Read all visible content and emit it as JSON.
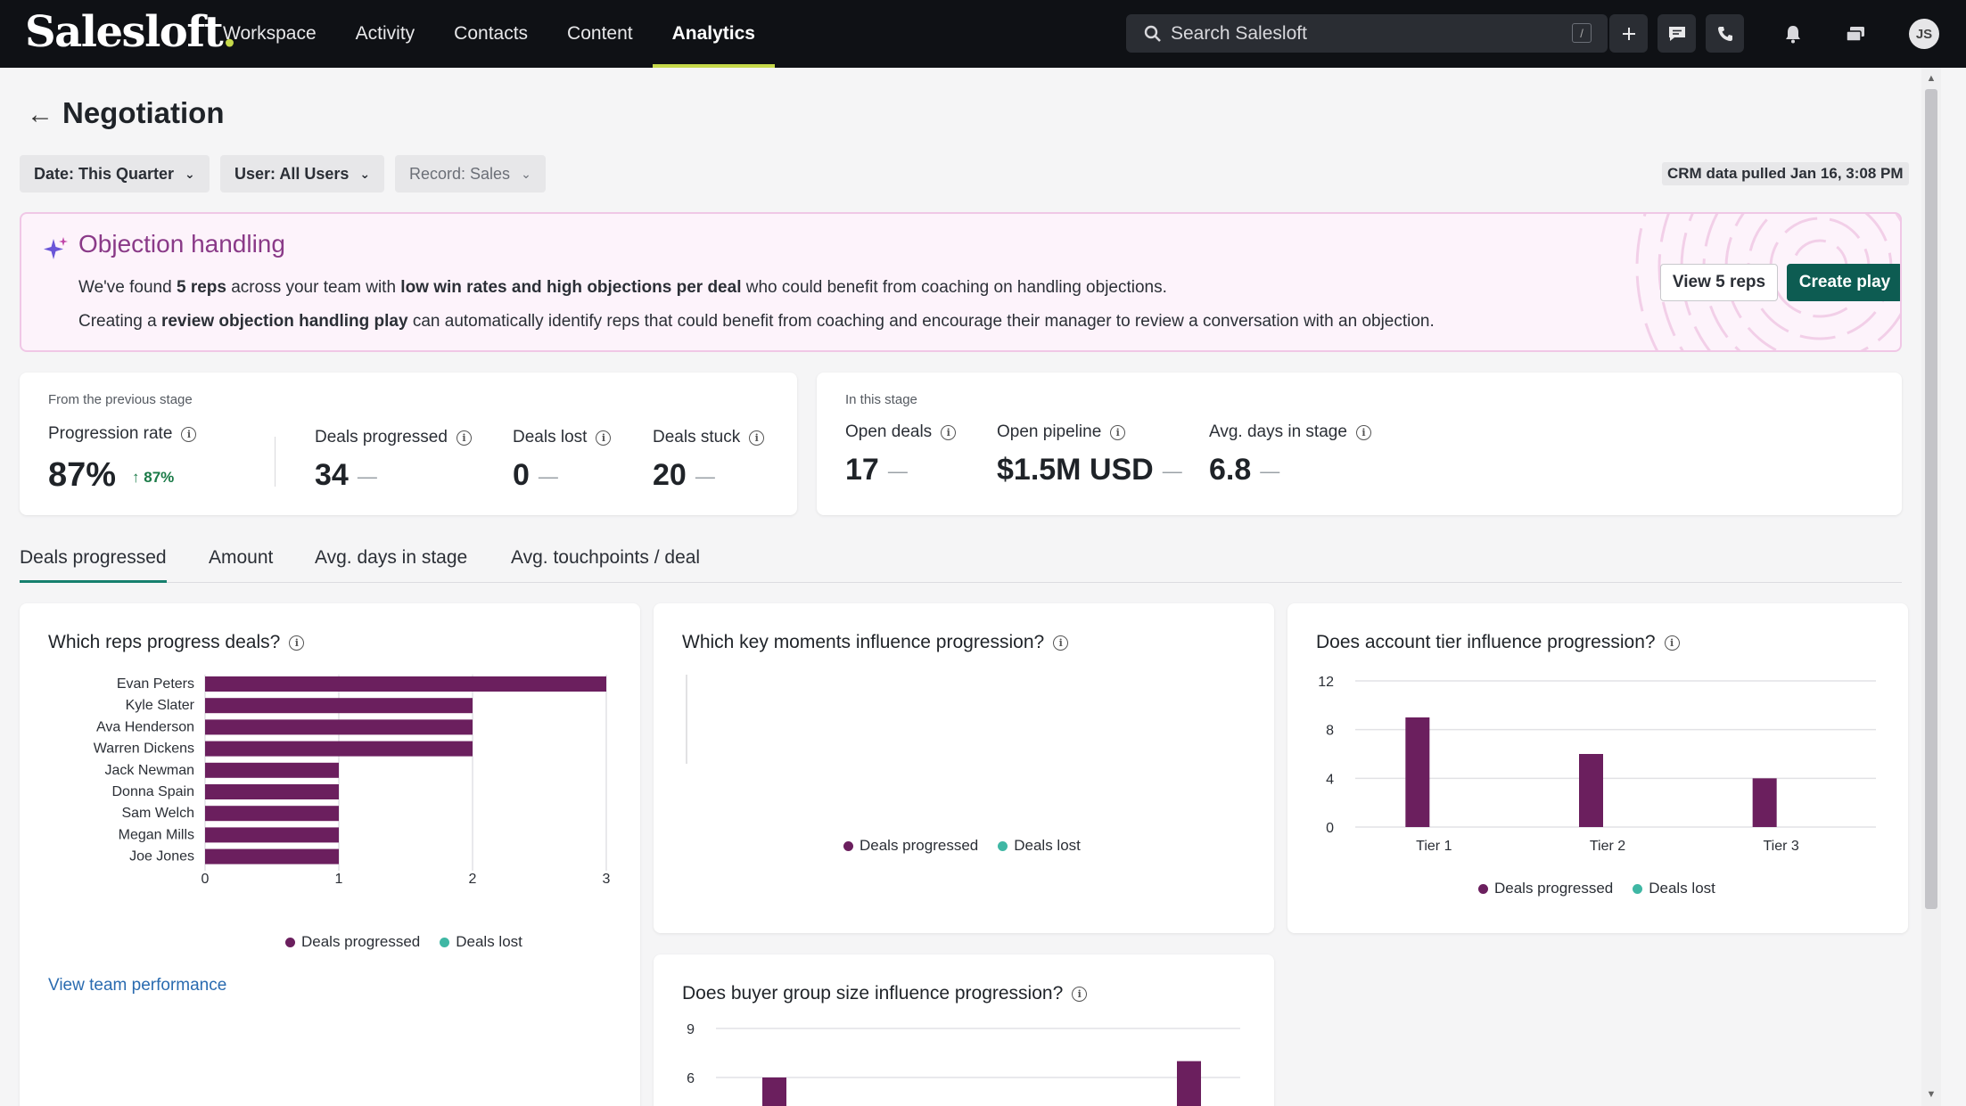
{
  "nav": {
    "logo": "Salesloft",
    "logo_dot": ".",
    "links": [
      "Workspace",
      "Activity",
      "Contacts",
      "Content",
      "Analytics"
    ],
    "active": "Analytics",
    "search_placeholder": "Search Salesloft",
    "search_shortcut": "/",
    "avatar_initials": "JS"
  },
  "page": {
    "title": "Negotiation",
    "filters": {
      "date": "Date: This Quarter",
      "user": "User: All Users",
      "record": "Record: Sales"
    },
    "crm_status": "CRM data pulled Jan 16, 3:08 PM"
  },
  "banner": {
    "title": "Objection handling",
    "line1": {
      "p1": "We've found ",
      "b1": "5 reps",
      "p2": " across your team with ",
      "b2": "low win rates and high objections per deal",
      "p3": " who could benefit from coaching on handling objections."
    },
    "line2": {
      "p1": "Creating a ",
      "b1": "review objection handling play",
      "p2": " can automatically identify reps that could benefit from coaching and encourage their manager to review a conversation with an objection."
    },
    "view_button": "View 5 reps",
    "create_button": "Create play"
  },
  "prev_stage": {
    "section_label": "From the previous stage",
    "progression_rate_label": "Progression rate",
    "progression_rate_value": "87%",
    "progression_rate_delta": "87%",
    "deals_progressed_label": "Deals progressed",
    "deals_progressed_value": "34",
    "deals_lost_label": "Deals lost",
    "deals_lost_value": "0",
    "deals_stuck_label": "Deals stuck",
    "deals_stuck_value": "20",
    "dash": "—"
  },
  "this_stage": {
    "section_label": "In this stage",
    "open_deals_label": "Open deals",
    "open_deals_value": "17",
    "open_pipeline_label": "Open pipeline",
    "open_pipeline_value": "$1.5M USD",
    "avg_days_label": "Avg. days in stage",
    "avg_days_value": "6.8",
    "dash": "—"
  },
  "tabs": [
    "Deals progressed",
    "Amount",
    "Avg. days in stage",
    "Avg. touchpoints / deal"
  ],
  "active_tab": "Deals progressed",
  "colors": {
    "deals_progressed": "#6b1f5e",
    "deals_lost": "#3fb7a4",
    "accent": "#0d5c52"
  },
  "legend": {
    "progressed": "Deals progressed",
    "lost": "Deals lost"
  },
  "reps_chart": {
    "title": "Which reps progress deals?",
    "link": "View team performance",
    "chart_data": {
      "type": "bar",
      "orientation": "horizontal",
      "categories": [
        "Evan Peters",
        "Kyle Slater",
        "Ava Henderson",
        "Warren Dickens",
        "Jack Newman",
        "Donna Spain",
        "Sam Welch",
        "Megan Mills",
        "Joe Jones"
      ],
      "series": [
        {
          "name": "Deals progressed",
          "values": [
            3,
            2,
            2,
            2,
            1,
            1,
            1,
            1,
            1
          ]
        },
        {
          "name": "Deals lost",
          "values": [
            0,
            0,
            0,
            0,
            0,
            0,
            0,
            0,
            0
          ]
        }
      ],
      "xticks": [
        "0",
        "1",
        "2",
        "3"
      ],
      "xlim": [
        0,
        3
      ],
      "legend": "bottom"
    }
  },
  "moments_chart": {
    "title": "Which key moments influence progression?",
    "chart_data": {
      "type": "bar",
      "categories": [],
      "series": [
        {
          "name": "Deals progressed",
          "values": []
        },
        {
          "name": "Deals lost",
          "values": []
        }
      ],
      "legend": "bottom"
    }
  },
  "tier_chart": {
    "title": "Does account tier influence progression?",
    "chart_data": {
      "type": "bar",
      "categories": [
        "Tier 1",
        "Tier 2",
        "Tier 3"
      ],
      "series": [
        {
          "name": "Deals progressed",
          "values": [
            9,
            6,
            4
          ]
        },
        {
          "name": "Deals lost",
          "values": [
            0,
            0,
            0
          ]
        }
      ],
      "yticks": [
        "0",
        "4",
        "8",
        "12"
      ],
      "ylim": [
        0,
        12
      ],
      "grid": true,
      "legend": "bottom"
    }
  },
  "buyer_chart": {
    "title": "Does buyer group size influence progression?",
    "chart_data": {
      "type": "bar",
      "series": [
        {
          "name": "Deals progressed",
          "values": [
            6,
            7
          ]
        }
      ],
      "yticks_visible": [
        "6",
        "9"
      ],
      "ylim_visible_top": 9,
      "grid": true
    }
  }
}
